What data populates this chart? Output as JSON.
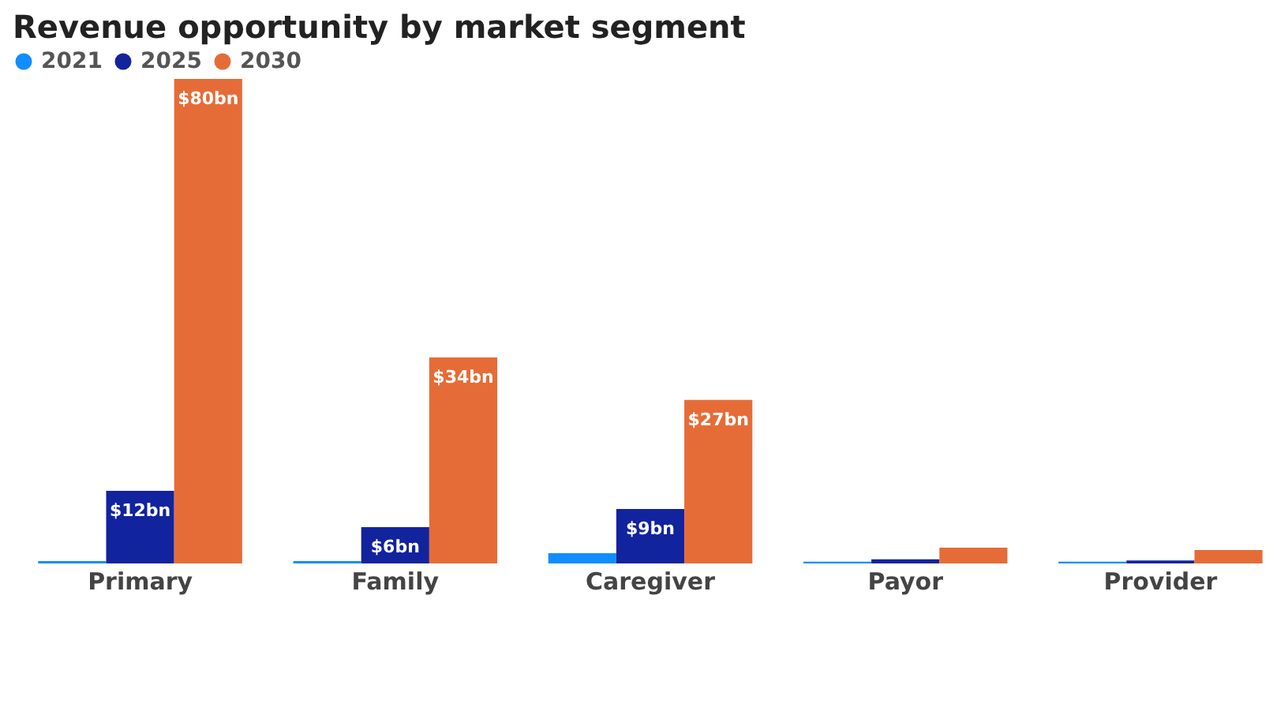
{
  "chart_data": {
    "type": "bar",
    "title": "Revenue opportunity by market segment",
    "categories": [
      "Primary",
      "Family",
      "Caregiver",
      "Payor",
      "Provider"
    ],
    "series": [
      {
        "name": "2021",
        "color": "#118dff",
        "values": [
          0.4,
          0.4,
          1.7,
          0.3,
          0.3
        ],
        "value_labels": [
          null,
          null,
          null,
          null,
          null
        ]
      },
      {
        "name": "2025",
        "color": "#12239e",
        "values": [
          12,
          6,
          9,
          0.7,
          0.5
        ],
        "value_labels": [
          "$12bn",
          "$6bn",
          "$9bn",
          null,
          null
        ]
      },
      {
        "name": "2030",
        "color": "#e66c37",
        "values": [
          80,
          34,
          27,
          2.6,
          2.2
        ],
        "value_labels": [
          "$80bn",
          "$34bn",
          "$27bn",
          null,
          null
        ]
      }
    ],
    "legend": "top left",
    "grid": false
  }
}
